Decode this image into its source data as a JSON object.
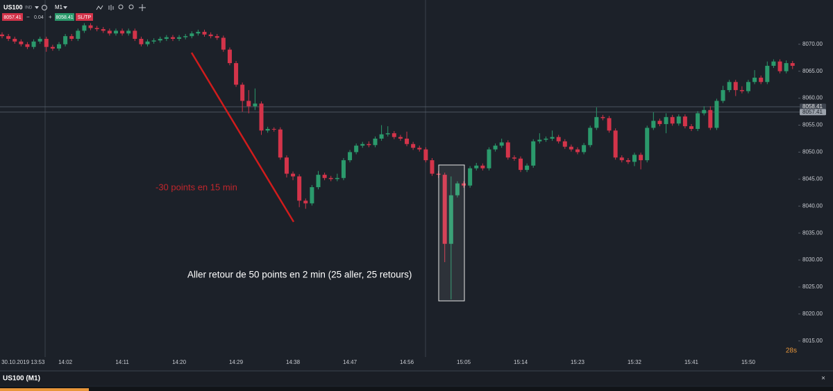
{
  "toolbar": {
    "symbol": "US100",
    "type": "IND",
    "timeframe": "M1",
    "bid": "8057.41",
    "minus": "−",
    "spread": "0.04",
    "plus": "+",
    "ask": "8058.41",
    "sltp": "SL/TP"
  },
  "chart_data": {
    "type": "candlestick",
    "categories": [
      null,
      "30.10.2019 13:53",
      null,
      null,
      null,
      null,
      null,
      null,
      null,
      null,
      "14:02",
      null,
      null,
      null,
      null,
      null,
      null,
      null,
      null,
      "14:11",
      null,
      null,
      null,
      null,
      null,
      null,
      null,
      null,
      "14:20",
      null,
      null,
      null,
      null,
      null,
      null,
      null,
      null,
      "14:29",
      null,
      null,
      null,
      null,
      null,
      null,
      null,
      null,
      "14:38",
      null,
      null,
      null,
      null,
      null,
      null,
      null,
      null,
      "14:47",
      null,
      null,
      null,
      null,
      null,
      null,
      null,
      null,
      "14:56",
      null,
      null,
      null,
      null,
      null,
      null,
      null,
      null,
      "15:05",
      null,
      null,
      null,
      null,
      null,
      null,
      null,
      null,
      "15:14",
      null,
      null,
      null,
      null,
      null,
      null,
      null,
      null,
      "15:23",
      null,
      null,
      null,
      null,
      null,
      null,
      null,
      null,
      "15:32",
      null,
      null,
      null,
      null,
      null,
      null,
      null,
      null,
      "15:41",
      null,
      null,
      null,
      null,
      null,
      null,
      null,
      null,
      "15:50",
      null,
      null,
      null,
      null,
      null,
      null,
      null
    ],
    "open": [
      8071.8,
      8071.5,
      8071,
      8070.5,
      8070,
      8069.5,
      8070.5,
      8071,
      8069.5,
      8069.2,
      8070,
      8071.5,
      8071,
      8072.5,
      8073.5,
      8073,
      8072.8,
      8072.5,
      8072,
      8072.5,
      8072,
      8072.5,
      8071,
      8070,
      8070.5,
      8070.7,
      8071,
      8071.3,
      8071,
      8071.3,
      8071.5,
      8072,
      8072.3,
      8071.8,
      8071.5,
      8071.2,
      8069,
      8066.5,
      8062.5,
      8059.5,
      8058.5,
      8059,
      8054,
      8054.3,
      8054.2,
      8049,
      8046,
      8045.5,
      8041,
      8040.5,
      8043.5,
      8045.8,
      8045.2,
      8045,
      8045.2,
      8048.5,
      8050,
      8051.2,
      8051.5,
      8051.3,
      8052.5,
      8053.3,
      8053.5,
      8052.8,
      8052.5,
      8051.5,
      8050.8,
      8050.5,
      8048.5,
      8046,
      8045.8,
      8033,
      8042,
      8044.2,
      8043.8,
      8047,
      8047.5,
      8047,
      8050.5,
      8051.2,
      8051.8,
      8049,
      8048.8,
      8046.7,
      8047.5,
      8052,
      8052.3,
      8052.5,
      8052.8,
      8052,
      8051,
      8050.5,
      8050,
      8051.3,
      8054.5,
      8056.5,
      8056.3,
      8054,
      8049,
      8048.5,
      8048.2,
      8049.5,
      8048.5,
      8054.5,
      8055.8,
      8055.2,
      8056.5,
      8055.3,
      8056.6,
      8054.8,
      8054.3,
      8057.2,
      8057.8,
      8054.5,
      8059.5,
      8061.5,
      8063,
      8061.5,
      8061.3,
      8063,
      8063.8,
      8063,
      8066,
      8066.8,
      8065,
      8066.5
    ],
    "high": [
      8072.2,
      8071.9,
      8071.4,
      8070.9,
      8070.4,
      8070.9,
      8071.4,
      8071.4,
      8069.9,
      8070.4,
      8071.9,
      8071.9,
      8072.9,
      8073.9,
      8073.9,
      8073.4,
      8073.2,
      8072.9,
      8072.9,
      8072.9,
      8072.9,
      8072.9,
      8071.4,
      8070.9,
      8071.1,
      8071.4,
      8071.7,
      8071.7,
      8071.7,
      8071.9,
      8072.4,
      8072.7,
      8072.7,
      8072.2,
      8071.9,
      8071.6,
      8069.4,
      8066.9,
      8062.9,
      8061.5,
      8061.8,
      8059.4,
      8054.7,
      8054.6,
      8054.6,
      8049.4,
      8046.4,
      8045.9,
      8041.4,
      8043.9,
      8046.5,
      8046.2,
      8045.6,
      8046,
      8048.9,
      8050.4,
      8051.6,
      8051.9,
      8052,
      8052.9,
      8055,
      8054.8,
      8053.9,
      8053.2,
      8053.8,
      8051.9,
      8051.2,
      8050.9,
      8048.9,
      8046.5,
      8046.2,
      8045.5,
      8044.6,
      8044.6,
      8047.4,
      8048,
      8047.9,
      8050.9,
      8051.6,
      8052.5,
      8052.2,
      8049.4,
      8049.2,
      8047.9,
      8052.4,
      8053.5,
      8052.9,
      8054,
      8053.2,
      8052.4,
      8051.4,
      8050.9,
      8051.7,
      8054.9,
      8058.3,
      8056.9,
      8056.7,
      8054.4,
      8049.4,
      8048.9,
      8049.9,
      8049.9,
      8054.9,
      8057.4,
      8056.2,
      8057.2,
      8056.9,
      8057,
      8057,
      8055.2,
      8057.6,
      8058.5,
      8058.5,
      8059.9,
      8062.3,
      8063.4,
      8063.4,
      8062.2,
      8063.4,
      8065.2,
      8064.2,
      8066.8,
      8067.2,
      8067.2,
      8067,
      8066.9
    ],
    "low": [
      8071.1,
      8070.6,
      8070.1,
      8069.6,
      8069.1,
      8069.1,
      8070.1,
      8068.6,
      8068.8,
      8068.8,
      8069.6,
      8070.6,
      8070.6,
      8072.1,
      8072.6,
      8072.4,
      8072.1,
      8071.6,
      8071.6,
      8071.6,
      8071.6,
      8070.6,
      8069.6,
      8069.6,
      8070.1,
      8070.3,
      8070.6,
      8070.6,
      8070.6,
      8070.9,
      8071.1,
      8071.6,
      8071.4,
      8071.1,
      8070.8,
      8068.6,
      8066.1,
      8062.1,
      8057.5,
      8057.2,
      8057.8,
      8053.2,
      8053.6,
      8053.8,
      8048.6,
      8045.3,
      8044.8,
      8039.8,
      8039.5,
      8040.1,
      8043.1,
      8044.8,
      8044.6,
      8044.6,
      8044.8,
      8048.1,
      8049.6,
      8050.8,
      8050.9,
      8050.9,
      8052.1,
      8052.9,
      8052.4,
      8052.1,
      8051.1,
      8050.4,
      8050.1,
      8048.1,
      8045.6,
      8045.2,
      8029.6,
      8022.7,
      8041.6,
      8043.4,
      8043.4,
      8046.6,
      8046.6,
      8046.6,
      8050.1,
      8050.8,
      8048.6,
      8048.4,
      8046.3,
      8046.3,
      8047.1,
      8051.6,
      8051.9,
      8052.1,
      8051.6,
      8050.6,
      8050.1,
      8049.6,
      8049.6,
      8050.9,
      8054.1,
      8055.9,
      8053.6,
      8048.6,
      8048.1,
      8047.8,
      8047.4,
      8046.8,
      8048.1,
      8054.1,
      8054.8,
      8053.5,
      8054.9,
      8054.9,
      8054.4,
      8053.9,
      8053.9,
      8056.8,
      8054.1,
      8054.1,
      8059.1,
      8061.1,
      8060.4,
      8060.9,
      8060.9,
      8062.6,
      8062.6,
      8062.6,
      8065.6,
      8064.6,
      8064.6,
      8065.4
    ],
    "close": [
      8071.5,
      8071,
      8070.5,
      8070,
      8069.5,
      8070.5,
      8071,
      8069.5,
      8069.2,
      8070,
      8071.5,
      8071,
      8072.5,
      8073.5,
      8073,
      8072.8,
      8072.5,
      8072,
      8072.5,
      8072,
      8072.5,
      8071,
      8070,
      8070.5,
      8070.7,
      8071,
      8071.3,
      8071,
      8071.3,
      8071.5,
      8072,
      8072.3,
      8071.8,
      8071.5,
      8071.2,
      8069,
      8066.5,
      8062.5,
      8059.5,
      8058.5,
      8059,
      8054,
      8054.3,
      8054.2,
      8049,
      8046,
      8045.5,
      8041,
      8040.5,
      8043.5,
      8045.8,
      8045.2,
      8045,
      8045.2,
      8048.5,
      8050,
      8051.2,
      8051.5,
      8051.3,
      8052.5,
      8053.3,
      8053.5,
      8052.8,
      8052.5,
      8051.5,
      8050.8,
      8050.5,
      8048.5,
      8046,
      8045.8,
      8033,
      8042,
      8044.2,
      8043.8,
      8047,
      8047.5,
      8047,
      8050.5,
      8051.2,
      8051.8,
      8049,
      8048.8,
      8046.7,
      8047.5,
      8052,
      8052.3,
      8052.5,
      8052.8,
      8052,
      8051,
      8050.5,
      8050,
      8051.3,
      8054.5,
      8056.5,
      8056.3,
      8054,
      8049,
      8048.5,
      8048.2,
      8049.5,
      8048.5,
      8054.5,
      8055.8,
      8055.2,
      8056.5,
      8055.3,
      8056.6,
      8054.8,
      8054.3,
      8057.2,
      8057.8,
      8054.5,
      8059.5,
      8061.5,
      8063,
      8061.5,
      8061.3,
      8063,
      8063.8,
      8063,
      8066,
      8066.8,
      8065,
      8066.5,
      8066
    ],
    "up_color": "#2b9a6c",
    "down_color": "#d3344a",
    "ylim": [
      8012.4,
      8078.2
    ],
    "yticks": [
      {
        "value": 8015,
        "label": "8015.00"
      },
      {
        "value": 8020,
        "label": "8020.00"
      },
      {
        "value": 8025,
        "label": "8025.00"
      },
      {
        "value": 8030,
        "label": "8030.00"
      },
      {
        "value": 8035,
        "label": "8035.00"
      },
      {
        "value": 8040,
        "label": "8040.00"
      },
      {
        "value": 8045,
        "label": "8045.00"
      },
      {
        "value": 8050,
        "label": "8050.00"
      },
      {
        "value": 8055,
        "label": "8055.00"
      },
      {
        "value": 8060,
        "label": "8060.00"
      },
      {
        "value": 8065,
        "label": "8065.00"
      },
      {
        "value": 8070,
        "label": "8070.00"
      }
    ],
    "price_lines": [
      8058.41,
      8057.41
    ],
    "annotations": [
      "-30 points en 15 min",
      "Aller retour de 50 points en 2 min (25 aller, 25 retours)"
    ],
    "countdown": "28s"
  },
  "footer": {
    "title": "US100 (M1)",
    "close": "×"
  }
}
